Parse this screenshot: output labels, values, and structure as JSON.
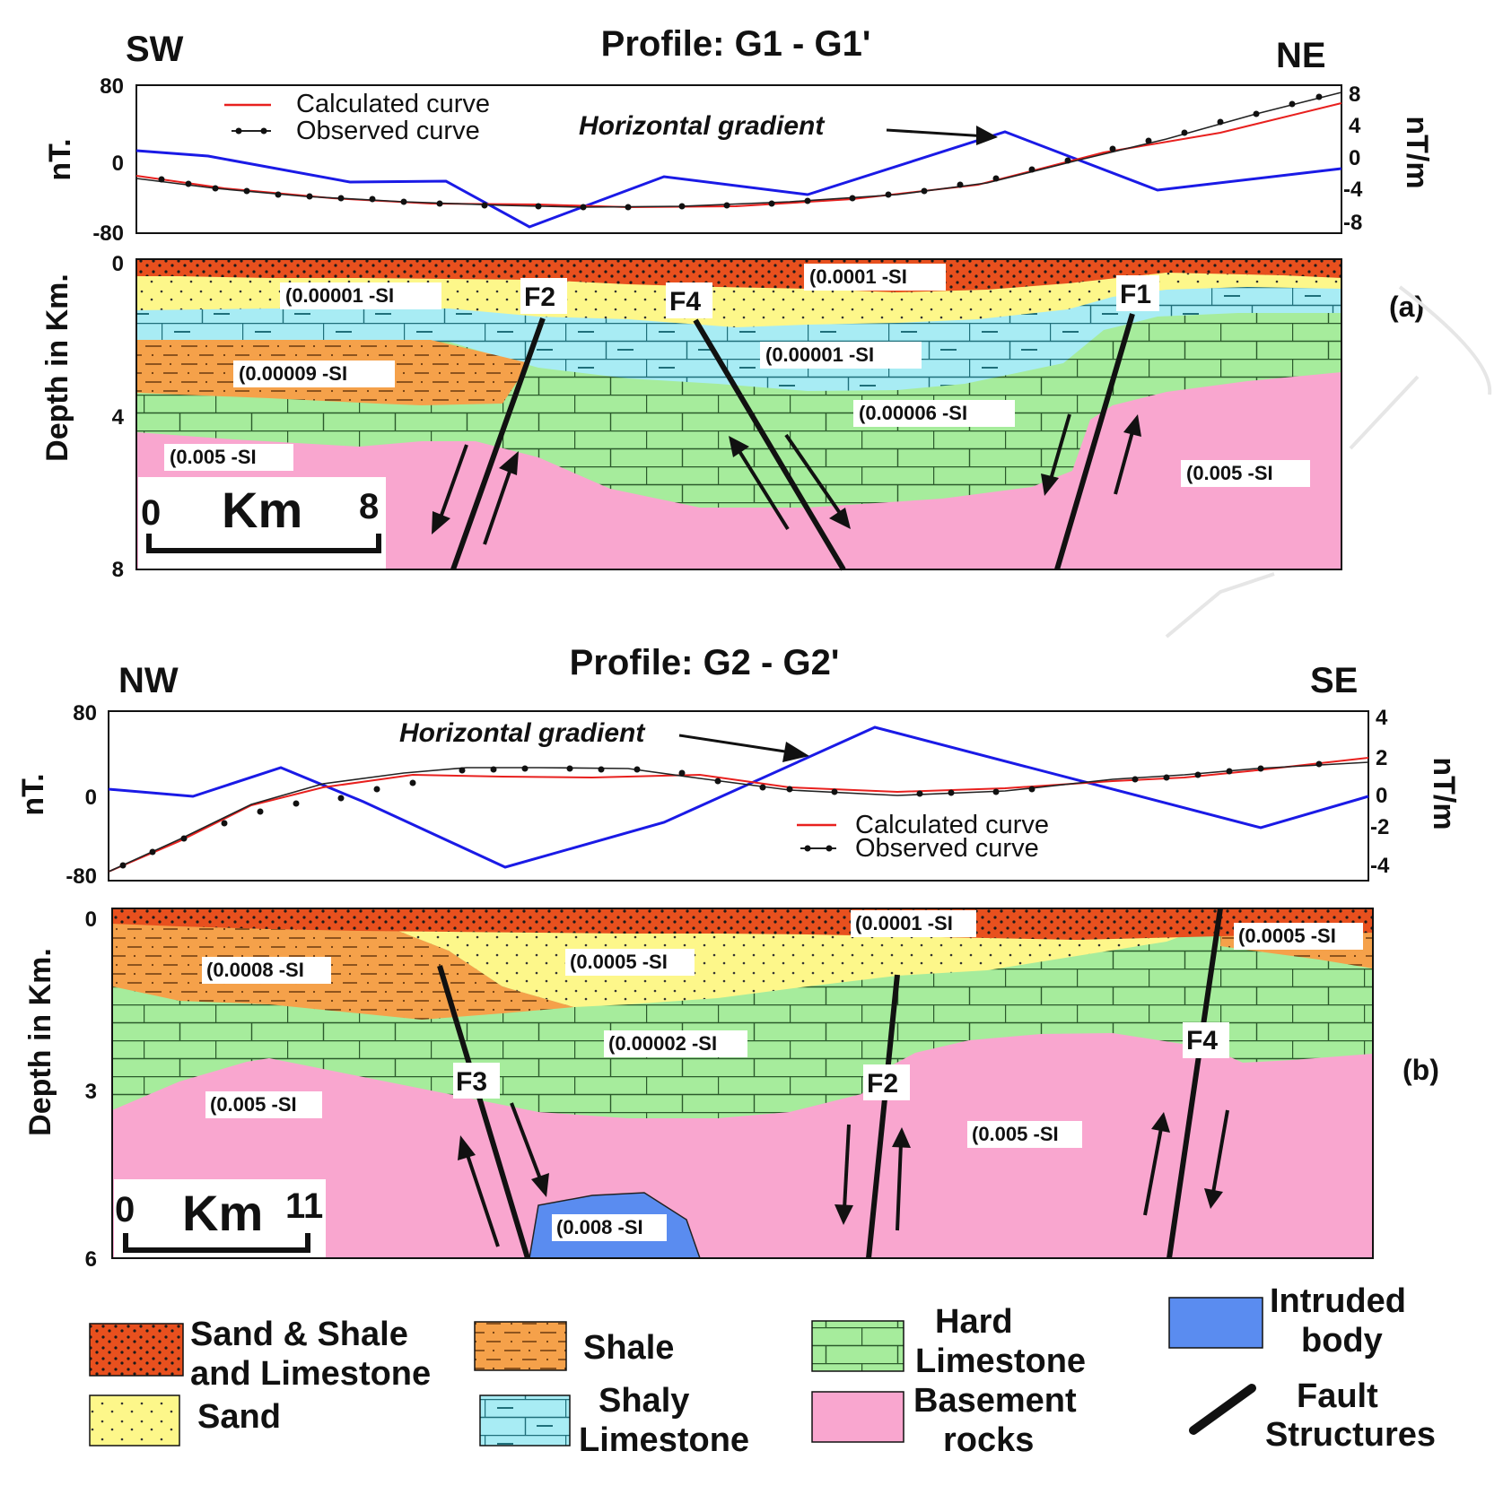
{
  "colors": {
    "sand_shale_limestone": "#e8501e",
    "sand": "#fdf78a",
    "shale": "#f5a14a",
    "shaly_limestone": "#a8ecf4",
    "hard_limestone": "#a6ec9c",
    "basement": "#f9a6cf",
    "intruded": "#5a8cf0",
    "calculated_curve": "#e8201e",
    "observed_curve": "#222222",
    "gradient_curve": "#1a1ae6"
  },
  "profile_a": {
    "title": "Profile: G1 - G1'",
    "left_dir": "SW",
    "right_dir": "NE",
    "panel_label": "(a)",
    "left_axis_label": "nT.",
    "right_axis_label": "nT/m",
    "depth_axis_label": "Depth in Km.",
    "left_ticks": [
      "80",
      "0",
      "-80"
    ],
    "right_ticks": [
      "8",
      "4",
      "0",
      "-4",
      "-8"
    ],
    "depth_ticks": [
      "0",
      "4",
      "8"
    ],
    "legend_calc": "Calculated curve",
    "legend_obs": "Observed curve",
    "gradient_label": "Horizontal gradient",
    "scale_left": "0",
    "scale_unit": "Km",
    "scale_right": "8",
    "susceptibilities": [
      "(0.0001 -SI",
      "(0.00001 -SI",
      "(0.00001 -SI",
      "(0.00009 -SI",
      "(0.00006 -SI",
      "(0.005 -SI",
      "(0.005 -SI"
    ],
    "faults": [
      "F2",
      "F4",
      "F1"
    ]
  },
  "profile_b": {
    "title": "Profile: G2 - G2'",
    "left_dir": "NW",
    "right_dir": "SE",
    "panel_label": "(b)",
    "left_axis_label": "nT.",
    "right_axis_label": "nT/m",
    "depth_axis_label": "Depth in Km.",
    "left_ticks": [
      "80",
      "0",
      "-80"
    ],
    "right_ticks": [
      "4",
      "2",
      "0",
      "-2",
      "-4"
    ],
    "depth_ticks": [
      "0",
      "3",
      "6"
    ],
    "legend_calc": "Calculated curve",
    "legend_obs": "Observed curve",
    "gradient_label": "Horizontal gradient",
    "scale_left": "0",
    "scale_unit": "Km",
    "scale_right": "11",
    "susceptibilities": [
      "(0.0001 -SI",
      "(0.0005 -SI",
      "(0.0008 -SI",
      "(0.0005 -SI",
      "(0.00002 -SI",
      "(0.005 -SI",
      "(0.005 -SI",
      "(0.008 -SI"
    ],
    "faults": [
      "F3",
      "F2",
      "F4"
    ]
  },
  "legend": {
    "sand_shale_1": "Sand & Shale",
    "sand_shale_2": "and Limestone",
    "sand": "Sand",
    "shale": "Shale",
    "shaly_1": "Shaly",
    "shaly_2": "Limestone",
    "hard_1": "Hard",
    "hard_2": "Limestone",
    "base_1": "Basement",
    "base_2": "rocks",
    "intr_1": "Intruded",
    "intr_2": "body",
    "fault_1": "Fault",
    "fault_2": "Structures"
  }
}
